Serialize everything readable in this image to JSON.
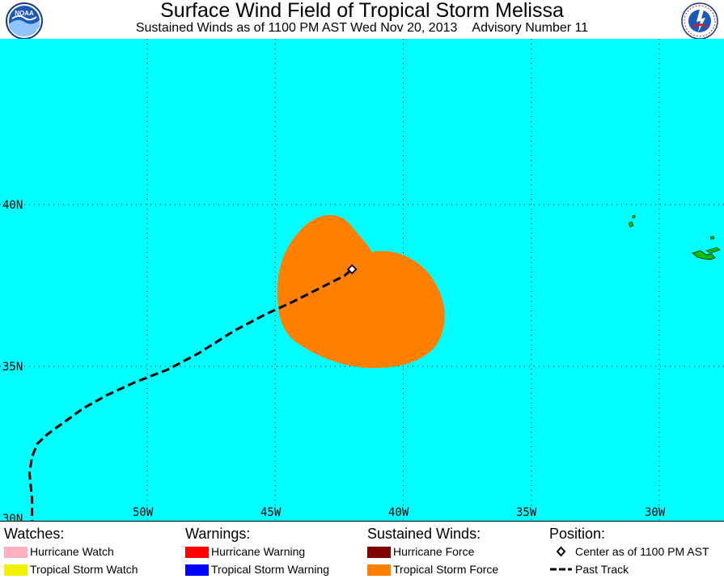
{
  "header": {
    "title": "Surface Wind Field of Tropical Storm Melissa",
    "subtitle_left": "Sustained Winds as of 1100 PM AST Wed Nov 20, 2013",
    "subtitle_right": "Advisory Number 11",
    "left_logo": "NOAA",
    "right_logo": "NATIONAL WEATHER SERVICE"
  },
  "map": {
    "ocean_color": "#00ffff",
    "latitude_labels": [
      "40N",
      "35N",
      "30N"
    ],
    "longitude_labels": [
      "50W",
      "45W",
      "40W",
      "35W",
      "30W"
    ],
    "storm_center": {
      "lat": 38.0,
      "lon": -42.0
    },
    "wind_field_color": "#ff8000",
    "land_color": "#00c000",
    "past_track": [
      {
        "lat": 30.0,
        "lon": -54.5
      },
      {
        "lat": 30.9,
        "lon": -54.5
      },
      {
        "lat": 31.7,
        "lon": -54.6
      },
      {
        "lat": 32.2,
        "lon": -54.5
      },
      {
        "lat": 32.6,
        "lon": -54.3
      },
      {
        "lat": 32.9,
        "lon": -53.9
      },
      {
        "lat": 33.3,
        "lon": -53.2
      },
      {
        "lat": 33.7,
        "lon": -52.5
      },
      {
        "lat": 34.1,
        "lon": -51.6
      },
      {
        "lat": 34.5,
        "lon": -50.5
      },
      {
        "lat": 34.9,
        "lon": -49.2
      },
      {
        "lat": 35.4,
        "lon": -48.0
      },
      {
        "lat": 36.1,
        "lon": -46.6
      },
      {
        "lat": 36.6,
        "lon": -45.4
      },
      {
        "lat": 37.0,
        "lon": -44.3
      },
      {
        "lat": 37.4,
        "lon": -43.3
      },
      {
        "lat": 37.8,
        "lon": -42.3
      },
      {
        "lat": 38.0,
        "lon": -42.0
      }
    ]
  },
  "legend": {
    "watches": {
      "heading": "Watches:",
      "items": [
        {
          "label": "Hurricane Watch",
          "color": "#ffb0c0"
        },
        {
          "label": "Tropical Storm Watch",
          "color": "#f0f000"
        }
      ]
    },
    "warnings": {
      "heading": "Warnings:",
      "items": [
        {
          "label": "Hurricane Warning",
          "color": "#ff0000"
        },
        {
          "label": "Tropical Storm Warning",
          "color": "#0000ff"
        }
      ]
    },
    "winds": {
      "heading": "Sustained Winds:",
      "items": [
        {
          "label": "Hurricane Force",
          "color": "#800000"
        },
        {
          "label": "Tropical Storm Force",
          "color": "#ff8000"
        }
      ]
    },
    "position": {
      "heading": "Position:",
      "items": [
        {
          "label": "Center as of 1100 PM AST",
          "icon": "diamond-icon"
        },
        {
          "label": "Past Track",
          "icon": "dashed-line-icon"
        }
      ]
    }
  }
}
